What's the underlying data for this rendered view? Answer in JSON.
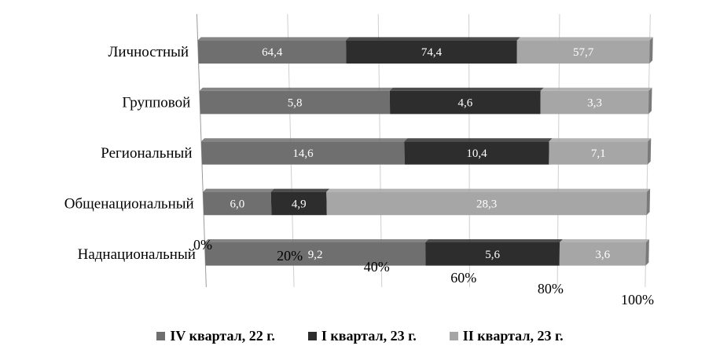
{
  "chart_data": {
    "type": "bar",
    "orientation": "horizontal",
    "stacked": "percent",
    "perspective_3d": true,
    "categories": [
      "Личностный",
      "Групповой",
      "Региональный",
      "Общенациональный",
      "Наднациональный"
    ],
    "series": [
      {
        "name": "IV квартал, 22 г.",
        "values": [
          64.4,
          5.8,
          14.6,
          6.0,
          9.2
        ],
        "value_labels": [
          "64,4",
          "5,8",
          "14,6",
          "6,0",
          "9,2"
        ],
        "color": "#6f6f6f"
      },
      {
        "name": "I квартал, 23 г.",
        "values": [
          74.4,
          4.6,
          10.4,
          4.9,
          5.6
        ],
        "value_labels": [
          "74,4",
          "4,6",
          "10,4",
          "4,9",
          "5,6"
        ],
        "color": "#2d2d2d"
      },
      {
        "name": "II квартал, 23 г.",
        "values": [
          57.7,
          3.3,
          7.1,
          28.3,
          3.6
        ],
        "value_labels": [
          "57,7",
          "3,3",
          "7,1",
          "28,3",
          "3,6"
        ],
        "color": "#a6a6a6"
      }
    ],
    "x_ticks": [
      "0%",
      "20%",
      "40%",
      "60%",
      "80%",
      "100%"
    ],
    "xlim": [
      0,
      100
    ],
    "grid": true,
    "legend_position": "bottom",
    "title": "",
    "xlabel": "",
    "ylabel": ""
  }
}
